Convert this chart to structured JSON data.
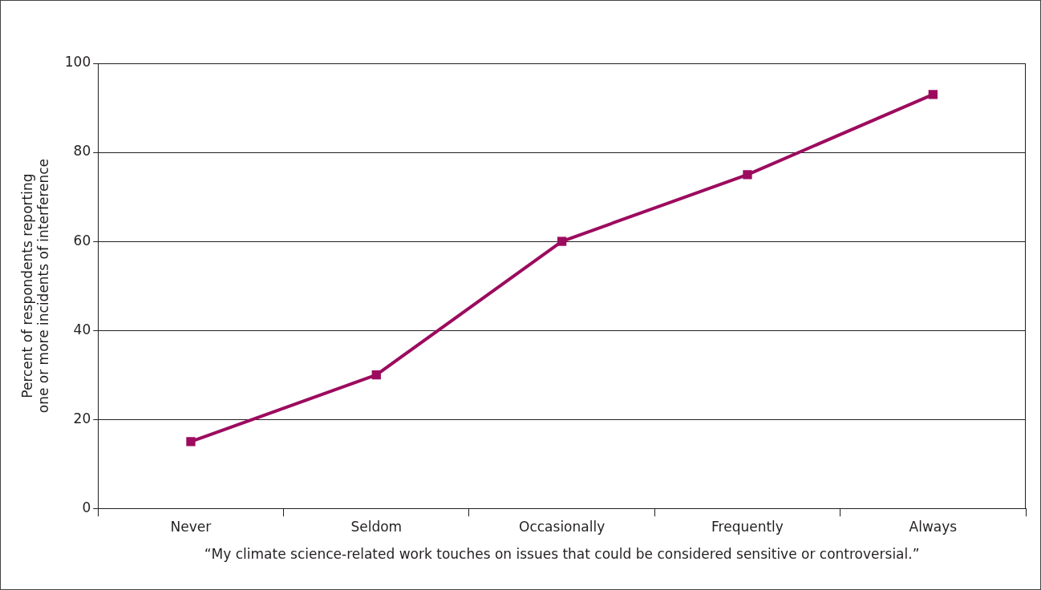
{
  "chart_data": {
    "type": "line",
    "xlabel": "“My climate science-related work touches on issues that could be considered sensitive or controversial.”",
    "ylabel": "Percent of respondents reporting\none or more incidents of interference",
    "categories": [
      "Never",
      "Seldom",
      "Occasionally",
      "Frequently",
      "Always"
    ],
    "series": [
      {
        "color": "#9c0b5e",
        "values": [
          15,
          30,
          60,
          75,
          93
        ]
      }
    ],
    "ylim": [
      0,
      100
    ],
    "yticks": [
      0,
      20,
      40,
      60,
      80,
      100
    ],
    "grid": "y",
    "legend": false,
    "marker": "square",
    "line_style": "solid"
  }
}
